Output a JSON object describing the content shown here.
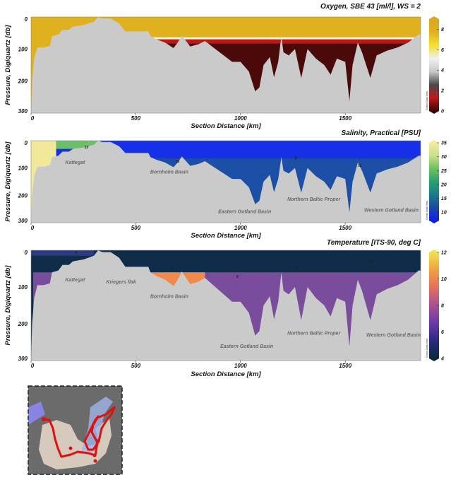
{
  "chart_data": {
    "type": "section",
    "x_label": "Section Distance [km]",
    "y_label": "Pressure, Digiquartz [db]",
    "xlim": [
      0,
      1860
    ],
    "ylim": [
      300,
      0
    ],
    "x_ticks": [
      "0",
      "500",
      "1000",
      "1500"
    ],
    "y_ticks": [
      "0",
      "100",
      "200",
      "300"
    ],
    "bottom_profile": [
      [
        0,
        300
      ],
      [
        5,
        200
      ],
      [
        15,
        130
      ],
      [
        30,
        95
      ],
      [
        60,
        95
      ],
      [
        90,
        90
      ],
      [
        100,
        60
      ],
      [
        130,
        55
      ],
      [
        150,
        40
      ],
      [
        180,
        40
      ],
      [
        200,
        30
      ],
      [
        250,
        25
      ],
      [
        300,
        15
      ],
      [
        320,
        0
      ],
      [
        340,
        5
      ],
      [
        380,
        5
      ],
      [
        420,
        20
      ],
      [
        450,
        45
      ],
      [
        500,
        45
      ],
      [
        560,
        45
      ],
      [
        570,
        60
      ],
      [
        600,
        70
      ],
      [
        640,
        80
      ],
      [
        680,
        97
      ],
      [
        700,
        80
      ],
      [
        720,
        58
      ],
      [
        760,
        92
      ],
      [
        800,
        85
      ],
      [
        830,
        75
      ],
      [
        870,
        95
      ],
      [
        920,
        120
      ],
      [
        960,
        140
      ],
      [
        1000,
        140
      ],
      [
        1040,
        170
      ],
      [
        1070,
        232
      ],
      [
        1090,
        220
      ],
      [
        1110,
        150
      ],
      [
        1140,
        125
      ],
      [
        1160,
        188
      ],
      [
        1180,
        140
      ],
      [
        1195,
        60
      ],
      [
        1205,
        110
      ],
      [
        1230,
        120
      ],
      [
        1260,
        100
      ],
      [
        1290,
        190
      ],
      [
        1320,
        100
      ],
      [
        1360,
        130
      ],
      [
        1400,
        150
      ],
      [
        1430,
        180
      ],
      [
        1460,
        130
      ],
      [
        1500,
        140
      ],
      [
        1520,
        262
      ],
      [
        1535,
        150
      ],
      [
        1560,
        80
      ],
      [
        1580,
        110
      ],
      [
        1620,
        190
      ],
      [
        1650,
        120
      ],
      [
        1700,
        105
      ],
      [
        1750,
        95
      ],
      [
        1800,
        80
      ],
      [
        1850,
        55
      ],
      [
        1860,
        55
      ]
    ],
    "panels": [
      {
        "title": "Oxygen, SBE 43 [ml/l], WS = 2",
        "variable": "oxygen",
        "colorbar_range": [
          0,
          9
        ],
        "colorbar_ticks": [
          "0",
          "2",
          "4",
          "6",
          "8"
        ],
        "colorbar_stops": [
          "#3a0606",
          "#c01818",
          "#4a4a4a",
          "#c8c8c8",
          "#f0f0f0",
          "#f2e030",
          "#e0b020",
          "#d9a820"
        ],
        "halocline_db": 70,
        "upper_color": "#e0b11e",
        "lower_color": "#4a0a0a",
        "basin_labels": [],
        "contour_labels": []
      },
      {
        "title": "Salinity, Practical [PSU]",
        "variable": "salinity",
        "colorbar_range": [
          7,
          35
        ],
        "colorbar_ticks": [
          "10",
          "15",
          "20",
          "25",
          "30",
          "35"
        ],
        "colorbar_stops": [
          "#1020e8",
          "#1a4aa0",
          "#1d7a8a",
          "#2aa070",
          "#6cc060",
          "#c8e08a",
          "#f4eca0"
        ],
        "halocline_db": 65,
        "upper_color": "#1530e6",
        "lower_color": "#1c4fa6",
        "basin_labels": [
          {
            "text": "Kattegat",
            "km": 210,
            "db": 85
          },
          {
            "text": "Bornholm Basin",
            "km": 660,
            "db": 120
          },
          {
            "text": "Eastern Gotland Basin",
            "km": 1020,
            "db": 265
          },
          {
            "text": "Northern Baltic Proper",
            "km": 1350,
            "db": 220
          },
          {
            "text": "Western Gotland Basin",
            "km": 1720,
            "db": 260
          }
        ],
        "contour_labels": [
          {
            "text": "10",
            "km": 255,
            "db": 28
          },
          {
            "text": "15",
            "km": 690,
            "db": 80
          },
          {
            "text": "8",
            "km": 1260,
            "db": 68
          },
          {
            "text": "11",
            "km": 1560,
            "db": 95
          }
        ]
      },
      {
        "title": "Temperature [ITS-90, deg C]",
        "variable": "temperature",
        "colorbar_range": [
          4,
          12
        ],
        "colorbar_ticks": [
          "4",
          "6",
          "8",
          "10",
          "12"
        ],
        "colorbar_stops": [
          "#0a2a3a",
          "#2a2a80",
          "#6a3aa8",
          "#a85090",
          "#e07060",
          "#f0a040",
          "#f0e050"
        ],
        "halocline_db": 60,
        "upper_color": "#0f2c48",
        "lower_color": "#7a4c9c",
        "basin_labels": [
          {
            "text": "Kattegat",
            "km": 210,
            "db": 85
          },
          {
            "text": "Kriegers flak",
            "km": 430,
            "db": 90
          },
          {
            "text": "Bornholm Basin",
            "km": 660,
            "db": 130
          },
          {
            "text": "Eastern Gotland Basin",
            "km": 1030,
            "db": 265
          },
          {
            "text": "Northern Baltic Proper",
            "km": 1350,
            "db": 230
          },
          {
            "text": "Western Gotland Basin",
            "km": 1730,
            "db": 235
          }
        ],
        "contour_labels": [
          {
            "text": "4",
            "km": 210,
            "db": 10
          },
          {
            "text": "6",
            "km": 670,
            "db": 55
          },
          {
            "text": "5",
            "km": 1260,
            "db": 50
          },
          {
            "text": "6",
            "km": 980,
            "db": 75
          },
          {
            "text": "4",
            "km": 1620,
            "db": 35
          }
        ]
      }
    ]
  },
  "watermark": "Ocean Data View"
}
